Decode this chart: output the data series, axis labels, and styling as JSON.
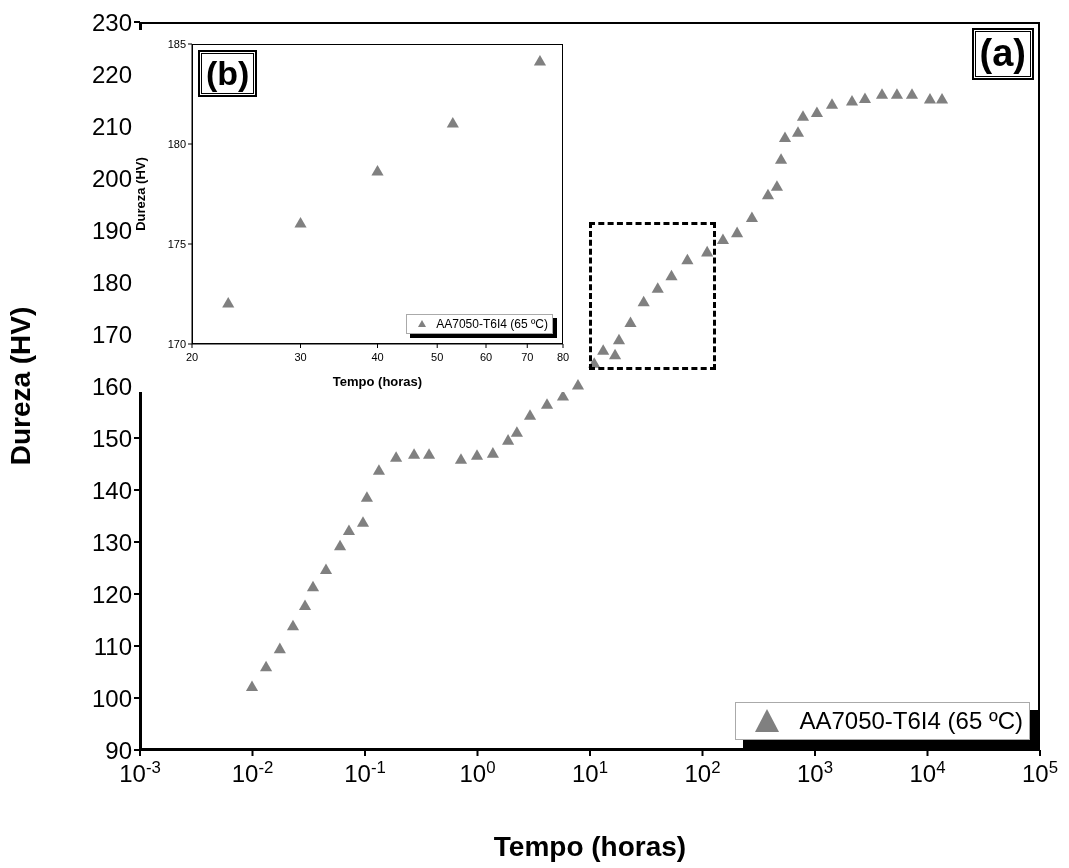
{
  "chart_data": [
    {
      "type": "scatter",
      "xlabel": "Tempo (horas)",
      "ylabel": "Dureza (HV)",
      "annotations": [
        "(a)"
      ],
      "x": [
        0.0099,
        0.0132,
        0.0175,
        0.0229,
        0.0293,
        0.0345,
        0.045,
        0.06,
        0.072,
        0.096,
        0.104,
        0.133,
        0.189,
        0.273,
        0.371,
        0.713,
        0.99,
        1.37,
        1.87,
        2.24,
        2.93,
        4.15,
        5.75,
        7.82,
        10.9,
        13.1,
        16.7,
        18.1,
        22.9,
        30,
        40,
        53,
        73.4,
        110,
        152,
        203,
        275,
        382,
        459,
        499,
        541,
        706,
        782,
        1040,
        1417,
        2133,
        2781,
        3942,
        5353,
        7278,
        10520,
        13460
      ],
      "series": [
        {
          "name": "AA7050-T6I4 (65 ºC)",
          "color": "#808080",
          "values": [
            102,
            105.8,
            109.3,
            113.7,
            117.6,
            121.2,
            124.5,
            129.1,
            132,
            133.6,
            138.4,
            143.6,
            146.1,
            146.7,
            146.7,
            145.7,
            146.5,
            146.9,
            149.4,
            150.9,
            154.2,
            156.3,
            157.9,
            160,
            164.2,
            166.7,
            165.8,
            168.7,
            172,
            176,
            178.6,
            181,
            184.1,
            185.6,
            188,
            189.3,
            192.2,
            196.6,
            198.2,
            203.4,
            207.6,
            208.6,
            211.7,
            212.4,
            214,
            214.6,
            215.1,
            215.9,
            215.9,
            215.9,
            215,
            215
          ]
        }
      ],
      "log": "x",
      "xlim": [
        0.001,
        100000
      ],
      "xticks": [
        {
          "value": 0.001,
          "label": "10$^{-3}$"
        },
        {
          "value": 0.01,
          "label": "10$^{-2}$"
        },
        {
          "value": 0.1,
          "label": "10$^{-1}$"
        },
        {
          "value": 1,
          "label": "10$^{0}$"
        },
        {
          "value": 10,
          "label": "10$^{1}$"
        },
        {
          "value": 100,
          "label": "10$^{2}$"
        },
        {
          "value": 1000,
          "label": "10$^{3}$"
        },
        {
          "value": 10000,
          "label": "10$^{4}$"
        },
        {
          "value": 100000,
          "label": "10$^{5}$"
        }
      ],
      "ylim": [
        90,
        230
      ],
      "yticks": [
        90,
        100,
        110,
        120,
        130,
        140,
        150,
        160,
        170,
        180,
        190,
        200,
        210,
        220,
        230
      ],
      "legend": "bottom right",
      "marker": "triangle"
    },
    {
      "type": "scatter",
      "xlabel": "Tempo (horas)",
      "ylabel": "Dureza (HV)",
      "annotations": [
        "(b)"
      ],
      "x": [
        22.9,
        30,
        40,
        53,
        73.4
      ],
      "series": [
        {
          "name": "AA7050-T6I4 (65 ºC)",
          "color": "#808080",
          "values": [
            172,
            176,
            178.6,
            181,
            184.1
          ]
        }
      ],
      "log": "x",
      "xlim": [
        20,
        80
      ],
      "xticks": [
        20,
        30,
        40,
        50,
        60,
        70,
        80
      ],
      "ylim": [
        170,
        185
      ],
      "yticks": [
        170,
        175,
        180,
        185
      ],
      "legend": "bottom right",
      "marker": "triangle"
    }
  ]
}
